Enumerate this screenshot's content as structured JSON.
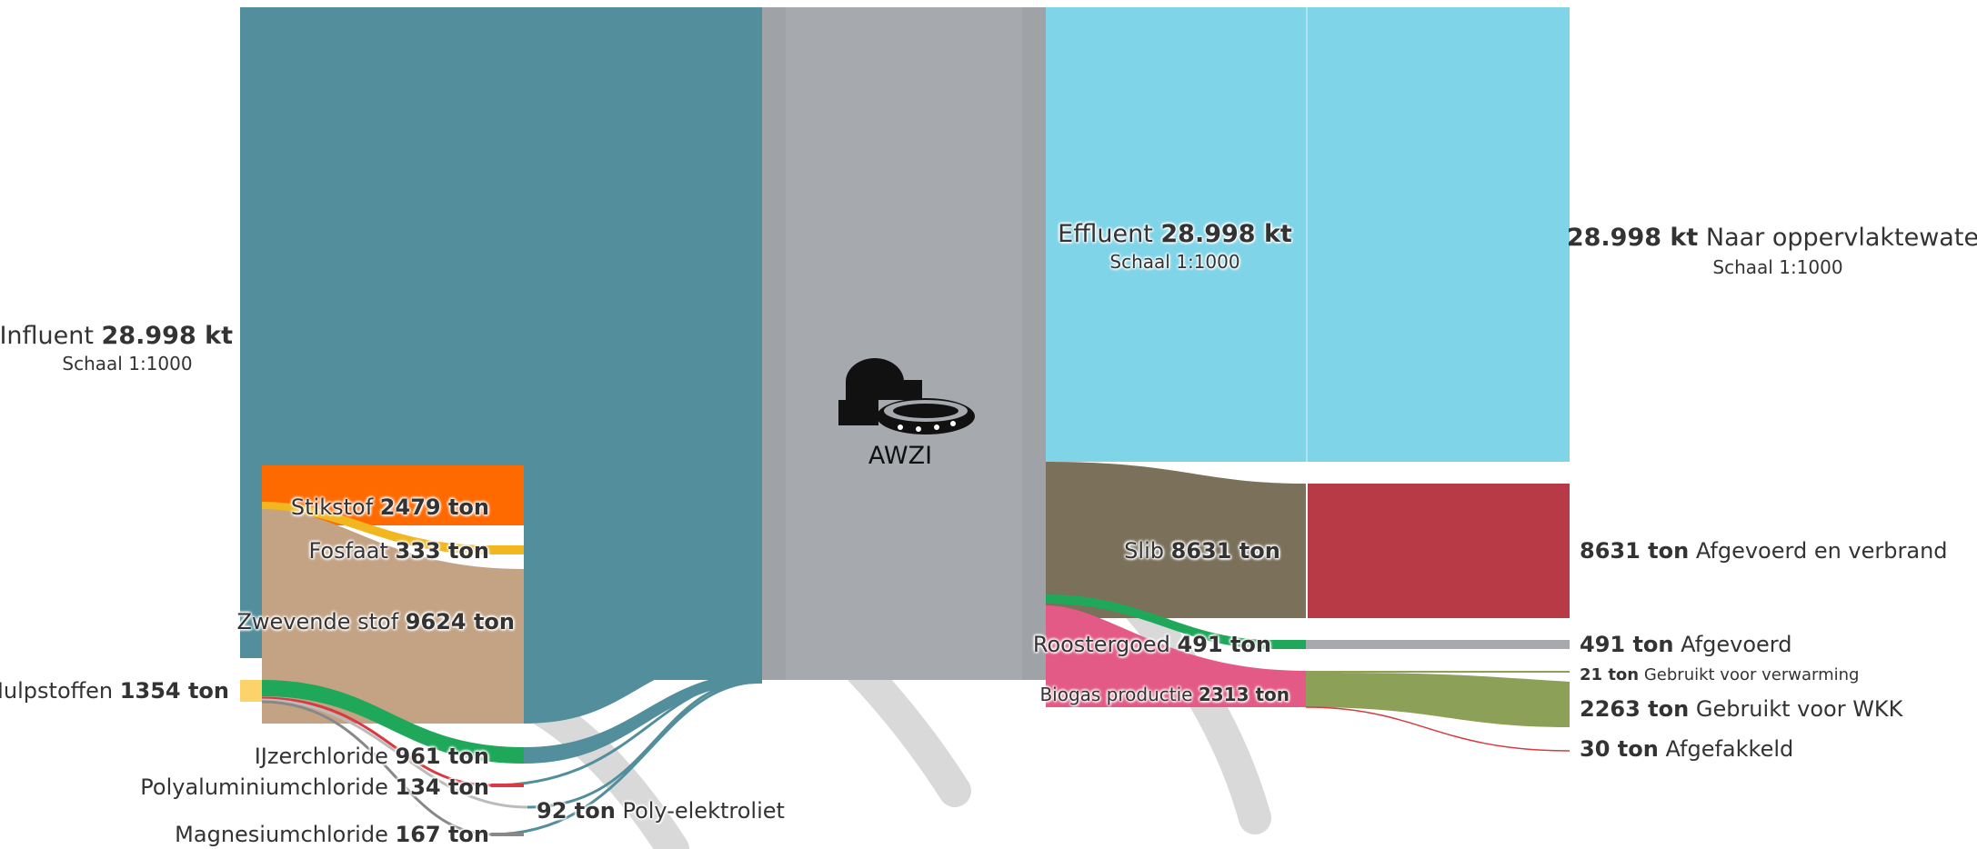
{
  "center": {
    "label": "AWZI",
    "icon": "wastewater-treatment-plant-icon"
  },
  "colors": {
    "influent": "#528e9b",
    "awzi": "#a6aaae",
    "effluent": "#7fd4e8",
    "stikstof": "#ff6a00",
    "fosfaat": "#f2b61f",
    "zwevende_stof": "#c4a385",
    "hulpstoffen": "#fcd36a",
    "ijzerchloride": "#1fa85a",
    "polyaluminiumchloride": "#d73a40",
    "polyelektroliet": "#999999",
    "slib": "#7b705a",
    "afgevoerd_en_verbrand": "#b93a47",
    "roostergoed": "#1fa85a",
    "afgevoerd": "#a6aaae",
    "biogas": "#e35a86",
    "wkk": "#8ca058",
    "watermark": "#d9d9d9"
  },
  "inputs": {
    "influent": {
      "name": "Influent",
      "value": "28.998 kt",
      "scale": "Schaal 1:1000"
    },
    "stikstof": {
      "name": "Stikstof",
      "value": "2479 ton"
    },
    "fosfaat": {
      "name": "Fosfaat",
      "value": "333 ton"
    },
    "zwevende_stof": {
      "name": "Zwevende stof",
      "value": "9624 ton"
    },
    "hulpstoffen": {
      "name": "Hulpstoffen",
      "value": "1354 ton"
    },
    "ijzerchloride": {
      "name": "IJzerchloride",
      "value": "961 ton"
    },
    "polyaluminiumchloride": {
      "name": "Polyaluminiumchloride",
      "value": "134 ton"
    },
    "poly_elektroliet": {
      "name": "Poly-elektroliet",
      "value": "92 ton"
    },
    "magnesiumchloride": {
      "name": "Magnesiumchloride",
      "value": "167 ton"
    }
  },
  "outputs": {
    "effluent": {
      "name": "Effluent",
      "value": "28.998 kt",
      "scale": "Schaal 1:1000"
    },
    "slib": {
      "name": "Slib",
      "value": "8631 ton"
    },
    "roostergoed": {
      "name": "Roostergoed",
      "value": "491 ton"
    },
    "biogas": {
      "name": "Biogas productie",
      "value": "2313 ton"
    }
  },
  "destinations": {
    "oppervlaktewater": {
      "value": "28.998 kt",
      "name": "Naar oppervlaktewater",
      "scale": "Schaal 1:1000"
    },
    "afgevoerd_en_verbrand": {
      "value": "8631 ton",
      "name": "Afgevoerd en verbrand"
    },
    "afgevoerd": {
      "value": "491 ton",
      "name": "Afgevoerd"
    },
    "verwarming": {
      "value": "21 ton",
      "name": "Gebruikt voor verwarming"
    },
    "wkk": {
      "value": "2263 ton",
      "name": "Gebruikt voor WKK"
    },
    "afgefakkeld": {
      "value": "30 ton",
      "name": "Afgefakkeld"
    }
  }
}
